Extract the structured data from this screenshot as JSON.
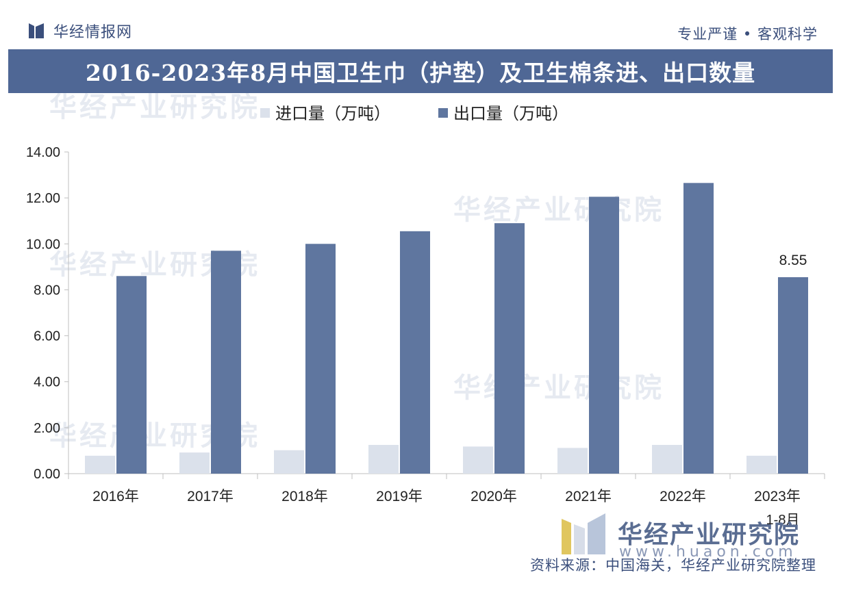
{
  "header": {
    "brand": "华经情报网",
    "slogan": "专业严谨 • 客观科学"
  },
  "title": "2016-2023年8月中国卫生巾（护垫）及卫生棉条进、出口数量",
  "watermark": {
    "brand": "华经产业研究院",
    "url": "www.huaon.com"
  },
  "source": "资料来源：中国海关，华经产业研究院整理",
  "chart_data": {
    "type": "bar",
    "title": "2016-2023年8月中国卫生巾（护垫）及卫生棉条进、出口数量",
    "categories": [
      "2016年",
      "2017年",
      "2018年",
      "2019年",
      "2020年",
      "2021年",
      "2022年",
      "2023年"
    ],
    "category_sublabels": [
      "",
      "",
      "",
      "",
      "",
      "",
      "",
      "1-8月"
    ],
    "series": [
      {
        "name": "进口量（万吨）",
        "color": "#dbe1eb",
        "values": [
          0.78,
          0.92,
          1.02,
          1.25,
          1.18,
          1.12,
          1.25,
          0.78
        ]
      },
      {
        "name": "出口量（万吨）",
        "color": "#5f769f",
        "values": [
          8.6,
          9.7,
          10.0,
          10.55,
          10.9,
          12.05,
          12.65,
          8.55
        ]
      }
    ],
    "data_labels": [
      {
        "series": 1,
        "index": 7,
        "text": "8.55"
      }
    ],
    "ylim": [
      0,
      14
    ],
    "yticks": [
      "0.00",
      "2.00",
      "4.00",
      "6.00",
      "8.00",
      "10.00",
      "12.00",
      "14.00"
    ],
    "xlabel": "",
    "ylabel": "",
    "legend_position": "top-center",
    "grid": false
  }
}
